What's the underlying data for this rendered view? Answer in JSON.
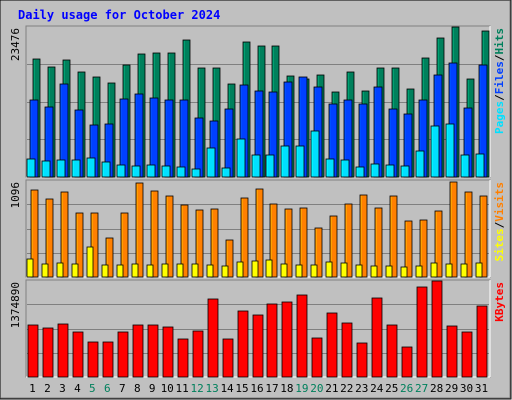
{
  "title": "Daily usage for October 2024",
  "colors": {
    "frame_bg": "#C0C0C0",
    "plot_bg": "#C0C0C0",
    "title": "#0000FF",
    "hits": "#00805C",
    "files": "#0040FF",
    "pages": "#00E0FF",
    "visits": "#FF8000",
    "sites": "#FFFF00",
    "kbytes": "#FF0000",
    "weekend": "#00805C",
    "weekday": "#000000"
  },
  "chart_data": [
    {
      "type": "bar",
      "name": "hits-files-pages",
      "categories": [
        "1",
        "2",
        "3",
        "4",
        "5",
        "6",
        "7",
        "8",
        "9",
        "10",
        "11",
        "12",
        "13",
        "14",
        "15",
        "16",
        "17",
        "18",
        "19",
        "20",
        "21",
        "22",
        "23",
        "24",
        "25",
        "26",
        "27",
        "28",
        "29",
        "30",
        "31"
      ],
      "ytick_label": "23476",
      "ylim": [
        0,
        23476
      ],
      "legend": [
        "Pages",
        "/",
        "Files",
        "/",
        "Hits"
      ],
      "series": [
        {
          "name": "Hits",
          "values": [
            18500,
            17200,
            18300,
            16400,
            15600,
            14700,
            17600,
            19300,
            19400,
            19400,
            21500,
            17100,
            17100,
            14500,
            21200,
            20500,
            20500,
            15800,
            15400,
            16000,
            13300,
            16500,
            13400,
            17000,
            17100,
            13800,
            18700,
            21700,
            23400,
            15400,
            22800
          ]
        },
        {
          "name": "Files",
          "values": [
            12100,
            11000,
            14500,
            10500,
            8100,
            8300,
            12200,
            13000,
            12400,
            12000,
            12000,
            9300,
            8700,
            10700,
            14400,
            13400,
            13300,
            14800,
            15700,
            14100,
            11400,
            12100,
            11500,
            14100,
            10600,
            9800,
            12100,
            16000,
            17800,
            10800,
            17600
          ]
        },
        {
          "name": "Pages",
          "values": [
            2800,
            2500,
            2600,
            2600,
            3000,
            2300,
            1900,
            1700,
            1800,
            1700,
            1500,
            1300,
            4600,
            1400,
            5900,
            3400,
            3500,
            4800,
            4900,
            7200,
            2800,
            2600,
            1600,
            2100,
            1800,
            1700,
            4000,
            8000,
            8300,
            3400,
            3600
          ]
        }
      ]
    },
    {
      "type": "bar",
      "name": "visits-sites",
      "categories": [
        "1",
        "2",
        "3",
        "4",
        "5",
        "6",
        "7",
        "8",
        "9",
        "10",
        "11",
        "12",
        "13",
        "14",
        "15",
        "16",
        "17",
        "18",
        "19",
        "20",
        "21",
        "22",
        "23",
        "24",
        "25",
        "26",
        "27",
        "28",
        "29",
        "30",
        "31"
      ],
      "ytick_label": "1096",
      "ylim": [
        0,
        1096
      ],
      "legend": [
        "Sites",
        "/",
        "Visits"
      ],
      "series": [
        {
          "name": "Visits",
          "values": [
            995,
            895,
            965,
            725,
            725,
            450,
            735,
            1075,
            980,
            920,
            820,
            770,
            780,
            425,
            900,
            1000,
            830,
            775,
            785,
            560,
            695,
            835,
            935,
            790,
            920,
            640,
            650,
            755,
            1080,
            975,
            930
          ]
        },
        {
          "name": "Sites",
          "values": [
            200,
            150,
            160,
            150,
            340,
            140,
            140,
            150,
            140,
            145,
            150,
            145,
            135,
            125,
            175,
            185,
            190,
            150,
            135,
            140,
            170,
            165,
            140,
            130,
            120,
            115,
            130,
            165,
            145,
            150,
            155
          ]
        }
      ]
    },
    {
      "type": "bar",
      "name": "kbytes",
      "categories": [
        "1",
        "2",
        "3",
        "4",
        "5",
        "6",
        "7",
        "8",
        "9",
        "10",
        "11",
        "12",
        "13",
        "14",
        "15",
        "16",
        "17",
        "18",
        "19",
        "20",
        "21",
        "22",
        "23",
        "24",
        "25",
        "26",
        "27",
        "28",
        "29",
        "30",
        "31"
      ],
      "ytick_label": "1374890",
      "ylim": [
        0,
        1374890
      ],
      "legend": [
        "KBytes"
      ],
      "series": [
        {
          "name": "KBytes",
          "values": [
            750000,
            700000,
            760000,
            650000,
            500000,
            500000,
            650000,
            740000,
            750000,
            710000,
            550000,
            660000,
            1120000,
            540000,
            950000,
            890000,
            1050000,
            1080000,
            1170000,
            560000,
            920000,
            780000,
            490000,
            1130000,
            750000,
            430000,
            1290000,
            1400000,
            730000,
            650000,
            1020000
          ]
        }
      ]
    }
  ]
}
